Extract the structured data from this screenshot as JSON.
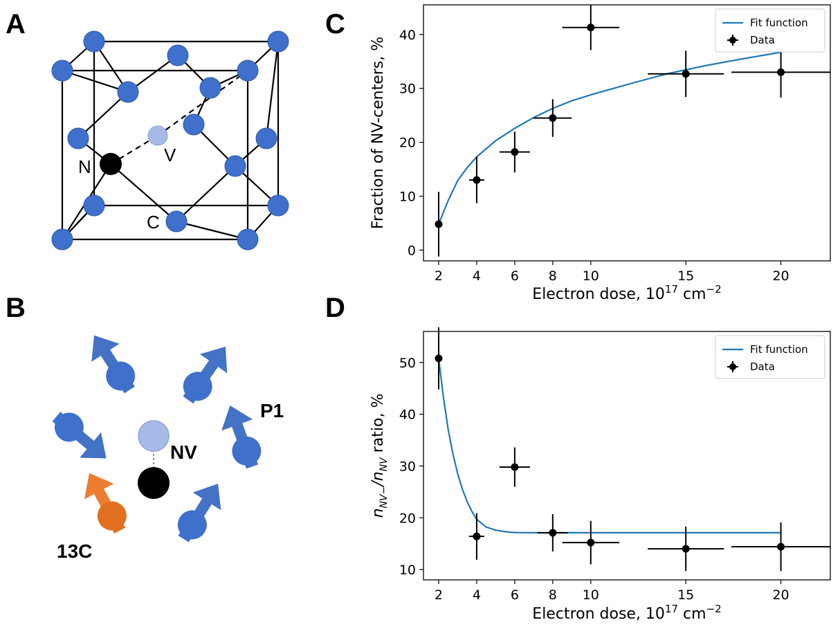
{
  "panels": {
    "A": "A",
    "B": "B",
    "C": "C",
    "D": "D"
  },
  "lattice": {
    "atom_labels": {
      "nitrogen": "N",
      "vacancy": "V",
      "carbon": "C"
    },
    "colors": {
      "carbon": "#3f70cc",
      "vacancy": "#a7bbe8",
      "nitrogen": "#000000"
    }
  },
  "spin_bath": {
    "labels": {
      "nv": "NV",
      "p1": "P1",
      "c13": "13C"
    },
    "colors": {
      "p1": "#4472c4",
      "c13": "#ed7d31",
      "vacancy": "#a7bbe8",
      "nitrogen": "#000000"
    }
  },
  "chart_data": [
    {
      "panel": "C",
      "type": "scatter",
      "xlabel": "Electron dose, 10",
      "xlabel_exp": "17",
      "xlabel_unit": " cm",
      "xlabel_unit_exp": "−2",
      "ylabel": "Fraction of NV-centers, %",
      "xlim": [
        1.2,
        22.6
      ],
      "ylim": [
        -2,
        45.5
      ],
      "xticks": [
        2,
        4,
        6,
        8,
        10,
        15,
        20
      ],
      "yticks": [
        0,
        10,
        20,
        30,
        40
      ],
      "legend": [
        "Fit function",
        "Data"
      ],
      "legend_position": "top-right",
      "fit_color": "#1f77b4",
      "data_color": "#000000",
      "series": [
        {
          "name": "Data",
          "x": [
            2,
            4,
            6,
            8,
            10,
            15,
            20
          ],
          "y": [
            4.8,
            13.0,
            18.2,
            24.5,
            41.3,
            32.7,
            33.0
          ],
          "xerr": [
            0,
            0.4,
            0.8,
            1.0,
            1.5,
            2.0,
            2.6
          ],
          "yerr": [
            6.0,
            4.3,
            3.8,
            3.5,
            4.2,
            4.3,
            4.7
          ]
        },
        {
          "name": "Fit function",
          "x": [
            2,
            2.5,
            3,
            3.5,
            4,
            5,
            6,
            7,
            8,
            9,
            10,
            12,
            14,
            16,
            18,
            20
          ],
          "y": [
            4.8,
            9.2,
            12.9,
            15.3,
            17.3,
            20.3,
            22.6,
            24.6,
            26.3,
            27.7,
            28.8,
            30.8,
            32.7,
            34.2,
            35.5,
            36.7
          ]
        }
      ]
    },
    {
      "panel": "D",
      "type": "scatter",
      "xlabel": "Electron dose, 10",
      "xlabel_exp": "17",
      "xlabel_unit": " cm",
      "xlabel_unit_exp": "−2",
      "ylabel_n1": "n",
      "ylabel_sub1": "NV−",
      "ylabel_slash": "/n",
      "ylabel_sub2": "NV",
      "ylabel_rest": " ratio, %",
      "xlim": [
        1.2,
        22.6
      ],
      "ylim": [
        8,
        56
      ],
      "xticks": [
        2,
        4,
        6,
        8,
        10,
        15,
        20
      ],
      "yticks": [
        10,
        20,
        30,
        40,
        50
      ],
      "legend": [
        "Fit function",
        "Data"
      ],
      "legend_position": "top-right",
      "fit_color": "#1f77b4",
      "data_color": "#000000",
      "series": [
        {
          "name": "Data",
          "x": [
            2,
            4,
            6,
            8,
            10,
            15,
            20
          ],
          "y": [
            50.8,
            16.4,
            29.8,
            17.1,
            15.2,
            14.0,
            14.4
          ],
          "xerr": [
            0,
            0.4,
            0.8,
            0.8,
            1.5,
            2.0,
            2.6
          ],
          "yerr": [
            6.0,
            4.5,
            3.8,
            3.6,
            4.2,
            4.3,
            4.7
          ]
        },
        {
          "name": "Fit function",
          "x": [
            2,
            2.25,
            2.5,
            2.75,
            3,
            3.25,
            3.5,
            3.75,
            4,
            4.5,
            5,
            5.5,
            6,
            7,
            8,
            10,
            12,
            15,
            20
          ],
          "y": [
            50.8,
            43.2,
            37.1,
            32.3,
            28.5,
            25.5,
            23.1,
            21.2,
            19.7,
            18.2,
            17.6,
            17.3,
            17.15,
            17.1,
            17.1,
            17.1,
            17.1,
            17.1,
            17.1
          ]
        }
      ]
    }
  ]
}
